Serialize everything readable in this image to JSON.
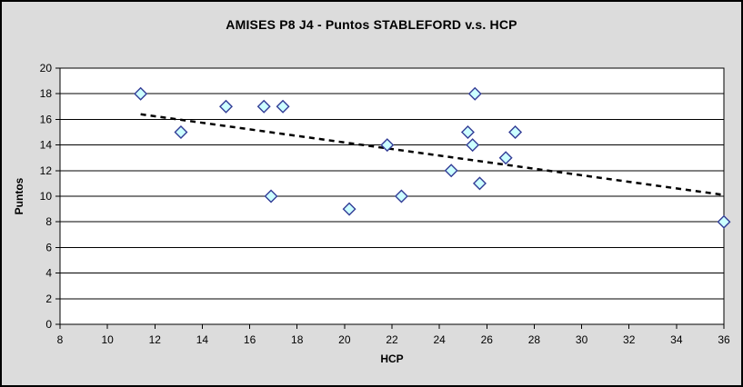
{
  "window": {
    "background_color": "#DCDCDC",
    "border_color": "#000000",
    "plot_background_color": "#FFFFFF",
    "gridline_color": "#000000"
  },
  "chart_data": {
    "type": "scatter",
    "title": "AMISES P8 J4 - Puntos STABLEFORD v.s. HCP",
    "xlabel": "HCP",
    "ylabel": "Puntos",
    "xlim": [
      8,
      36
    ],
    "ylim": [
      0,
      20
    ],
    "x_tick_step": 2,
    "y_tick_step": 2,
    "x_tick_labels": [
      "8",
      "10",
      "12",
      "14",
      "16",
      "18",
      "20",
      "22",
      "24",
      "26",
      "28",
      "30",
      "32",
      "34",
      "36"
    ],
    "y_tick_labels": [
      "0",
      "2",
      "4",
      "6",
      "8",
      "10",
      "12",
      "14",
      "16",
      "18",
      "20"
    ],
    "grid": "horizontal-only",
    "legend_position": "none",
    "marker": {
      "shape": "diamond",
      "fill": "#CCFFFF",
      "stroke": "#323C96"
    },
    "points": [
      {
        "x": 11.4,
        "y": 18
      },
      {
        "x": 13.1,
        "y": 15
      },
      {
        "x": 15.0,
        "y": 17
      },
      {
        "x": 16.6,
        "y": 17
      },
      {
        "x": 17.4,
        "y": 17
      },
      {
        "x": 16.9,
        "y": 10
      },
      {
        "x": 20.2,
        "y": 9
      },
      {
        "x": 21.8,
        "y": 14
      },
      {
        "x": 22.4,
        "y": 10
      },
      {
        "x": 24.5,
        "y": 12
      },
      {
        "x": 25.2,
        "y": 15
      },
      {
        "x": 25.5,
        "y": 18
      },
      {
        "x": 25.4,
        "y": 14
      },
      {
        "x": 25.7,
        "y": 11
      },
      {
        "x": 26.8,
        "y": 13
      },
      {
        "x": 27.2,
        "y": 15
      },
      {
        "x": 36.0,
        "y": 8
      }
    ],
    "trendline": {
      "style": "dashed",
      "color": "#000000",
      "x1": 11.4,
      "y1": 16.4,
      "x2": 36.0,
      "y2": 10.1
    }
  }
}
